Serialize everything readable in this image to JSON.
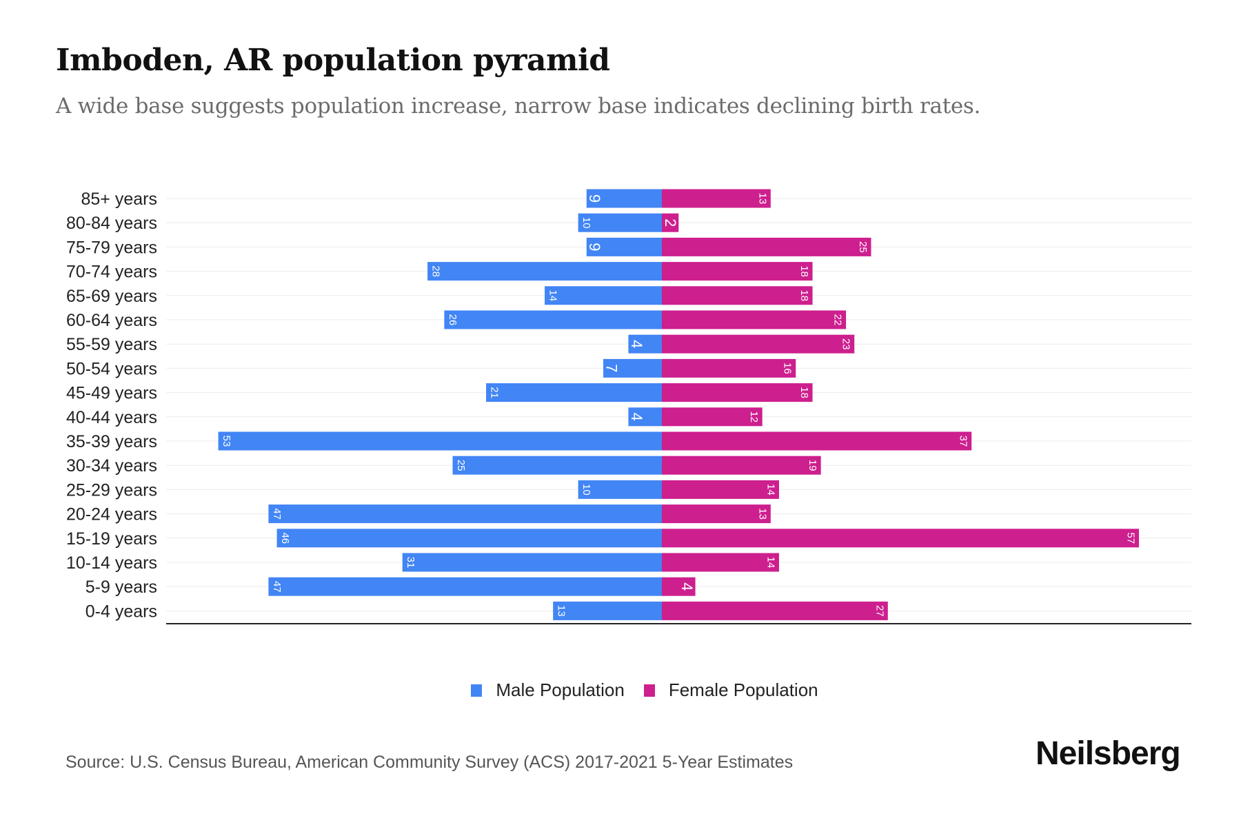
{
  "title": "Imboden, AR population pyramid",
  "subtitle": "A wide base suggests population increase, narrow base indicates declining birth rates.",
  "source": "Source: U.S. Census Bureau, American Community Survey (ACS) 2017-2021 5-Year Estimates",
  "logo": "Neilsberg",
  "chart_data": {
    "type": "bar",
    "orientation": "horizontal-pyramid",
    "categories": [
      "85+ years",
      "80-84 years",
      "75-79 years",
      "70-74 years",
      "65-69 years",
      "60-64 years",
      "55-59 years",
      "50-54 years",
      "45-49 years",
      "40-44 years",
      "35-39 years",
      "30-34 years",
      "25-29 years",
      "20-24 years",
      "15-19 years",
      "10-14 years",
      "5-9 years",
      "0-4 years"
    ],
    "series": [
      {
        "name": "Male Population",
        "color": "#4285f4",
        "values": [
          9,
          10,
          9,
          28,
          14,
          26,
          4,
          7,
          21,
          4,
          53,
          25,
          10,
          47,
          46,
          31,
          47,
          13
        ]
      },
      {
        "name": "Female Population",
        "color": "#cd1f8e",
        "values": [
          13,
          2,
          25,
          18,
          18,
          22,
          23,
          16,
          18,
          12,
          37,
          19,
          14,
          13,
          57,
          14,
          4,
          27
        ]
      }
    ],
    "xlim": [
      -59,
      63
    ],
    "grid": true,
    "legend": "bottom-center"
  }
}
